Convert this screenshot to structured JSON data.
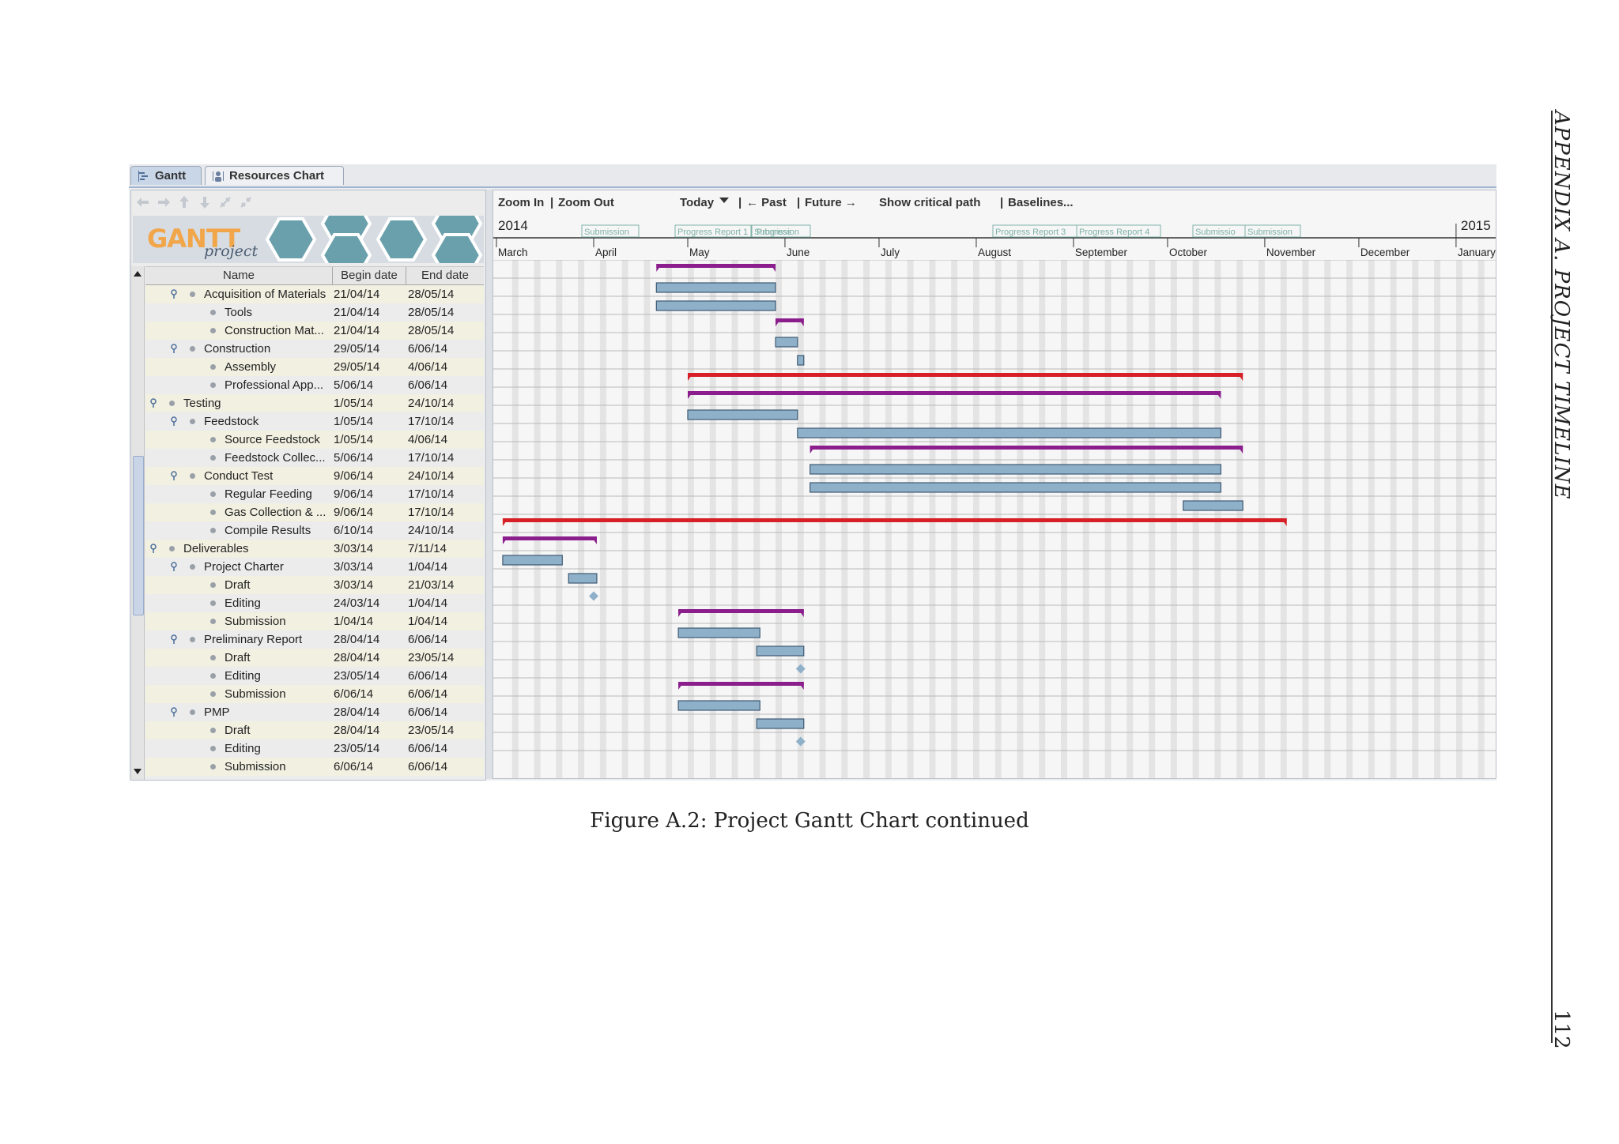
{
  "page": {
    "running_header": "APPENDIX A.  PROJECT TIMELINE",
    "page_number": "112",
    "caption": "Figure A.2: Project Gantt Chart continued"
  },
  "tabs": [
    {
      "label": "Gantt",
      "icon": "gantt-icon",
      "active": true
    },
    {
      "label": "Resources Chart",
      "icon": "resources-icon",
      "active": false
    }
  ],
  "logo": {
    "text": "GANTT",
    "sub": "project"
  },
  "toolbar": {
    "zoom_in": "Zoom In",
    "sep1": "|",
    "zoom_out": "Zoom Out",
    "today": "Today",
    "sep2": "|",
    "past": "← Past",
    "sep3": "|",
    "future": "Future →",
    "critical": "Show critical path",
    "sep4": "|",
    "baselines": "Baselines..."
  },
  "columns": {
    "name": "Name",
    "begin": "Begin date",
    "end": "End date"
  },
  "timeline": {
    "year_start": "2014",
    "year_end": "2015",
    "months": [
      "March",
      "April",
      "May",
      "June",
      "July",
      "August",
      "September",
      "October",
      "November",
      "December",
      "January"
    ],
    "milestones": [
      "Submission",
      "Progress Report 1",
      "Progress",
      "Submission",
      "Progress Report 3",
      "Progress Report 4",
      "Submissio",
      "Submission"
    ]
  },
  "tasks": [
    {
      "name": "Acquisition of Materials",
      "begin": "21/04/14",
      "end": "28/05/14",
      "level": 1,
      "type": "group",
      "color": "#8b1e8c"
    },
    {
      "name": "Tools",
      "begin": "21/04/14",
      "end": "28/05/14",
      "level": 2,
      "type": "task"
    },
    {
      "name": "Construction Mat...",
      "begin": "21/04/14",
      "end": "28/05/14",
      "level": 2,
      "type": "task"
    },
    {
      "name": "Construction",
      "begin": "29/05/14",
      "end": "6/06/14",
      "level": 1,
      "type": "group",
      "color": "#8b1e8c"
    },
    {
      "name": "Assembly",
      "begin": "29/05/14",
      "end": "4/06/14",
      "level": 2,
      "type": "task"
    },
    {
      "name": "Professional App...",
      "begin": "5/06/14",
      "end": "6/06/14",
      "level": 2,
      "type": "task"
    },
    {
      "name": "Testing",
      "begin": "1/05/14",
      "end": "24/10/14",
      "level": 0,
      "type": "group",
      "color": "#d61f26"
    },
    {
      "name": "Feedstock",
      "begin": "1/05/14",
      "end": "17/10/14",
      "level": 1,
      "type": "group",
      "color": "#8b1e8c"
    },
    {
      "name": "Source Feedstock",
      "begin": "1/05/14",
      "end": "4/06/14",
      "level": 2,
      "type": "task"
    },
    {
      "name": "Feedstock Collec...",
      "begin": "5/06/14",
      "end": "17/10/14",
      "level": 2,
      "type": "task"
    },
    {
      "name": "Conduct Test",
      "begin": "9/06/14",
      "end": "24/10/14",
      "level": 1,
      "type": "group",
      "color": "#8b1e8c"
    },
    {
      "name": "Regular Feeding",
      "begin": "9/06/14",
      "end": "17/10/14",
      "level": 2,
      "type": "task"
    },
    {
      "name": "Gas Collection & ...",
      "begin": "9/06/14",
      "end": "17/10/14",
      "level": 2,
      "type": "task"
    },
    {
      "name": "Compile Results",
      "begin": "6/10/14",
      "end": "24/10/14",
      "level": 2,
      "type": "task"
    },
    {
      "name": "Deliverables",
      "begin": "3/03/14",
      "end": "7/11/14",
      "level": 0,
      "type": "group",
      "color": "#d61f26"
    },
    {
      "name": "Project Charter",
      "begin": "3/03/14",
      "end": "1/04/14",
      "level": 1,
      "type": "group",
      "color": "#8b1e8c"
    },
    {
      "name": "Draft",
      "begin": "3/03/14",
      "end": "21/03/14",
      "level": 2,
      "type": "task"
    },
    {
      "name": "Editing",
      "begin": "24/03/14",
      "end": "1/04/14",
      "level": 2,
      "type": "task"
    },
    {
      "name": "Submission",
      "begin": "1/04/14",
      "end": "1/04/14",
      "level": 2,
      "type": "milestone"
    },
    {
      "name": "Preliminary Report",
      "begin": "28/04/14",
      "end": "6/06/14",
      "level": 1,
      "type": "group",
      "color": "#8b1e8c"
    },
    {
      "name": "Draft",
      "begin": "28/04/14",
      "end": "23/05/14",
      "level": 2,
      "type": "task"
    },
    {
      "name": "Editing",
      "begin": "23/05/14",
      "end": "6/06/14",
      "level": 2,
      "type": "task"
    },
    {
      "name": "Submission",
      "begin": "6/06/14",
      "end": "6/06/14",
      "level": 2,
      "type": "milestone"
    },
    {
      "name": "PMP",
      "begin": "28/04/14",
      "end": "6/06/14",
      "level": 1,
      "type": "group",
      "color": "#8b1e8c"
    },
    {
      "name": "Draft",
      "begin": "28/04/14",
      "end": "23/05/14",
      "level": 2,
      "type": "task"
    },
    {
      "name": "Editing",
      "begin": "23/05/14",
      "end": "6/06/14",
      "level": 2,
      "type": "task"
    },
    {
      "name": "Submission",
      "begin": "6/06/14",
      "end": "6/06/14",
      "level": 2,
      "type": "milestone"
    }
  ],
  "colors": {
    "task_bar": "#8fb0c9",
    "task_border": "#3f5a73",
    "milestone": "#8fb0c9",
    "grid": "#b9b9b9",
    "weekend": "#e4e4e4"
  }
}
